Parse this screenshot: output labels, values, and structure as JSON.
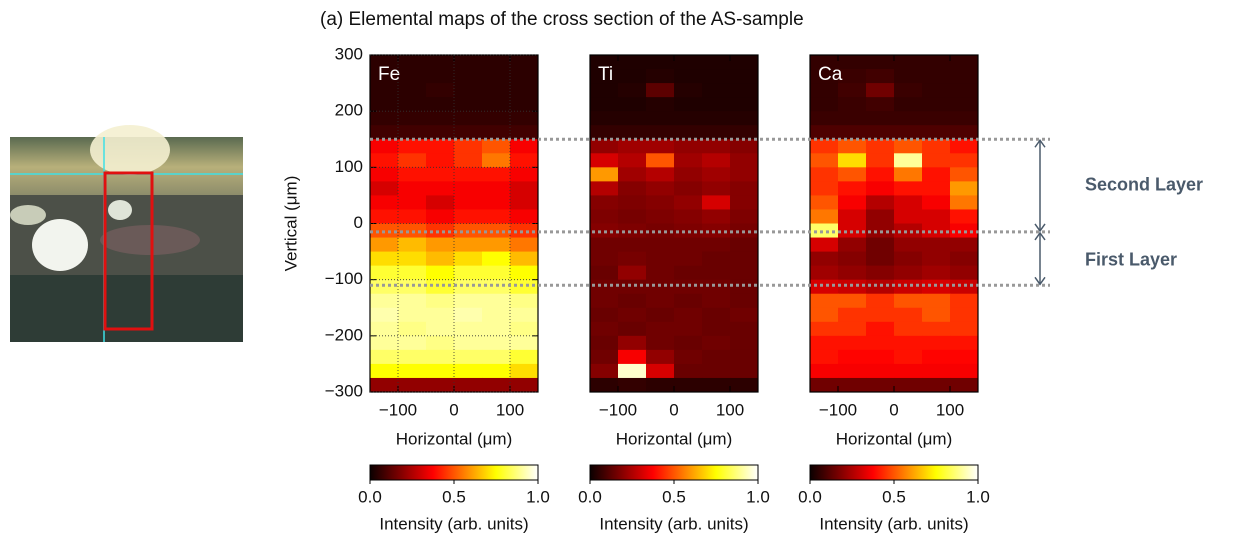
{
  "title": "(a) Elemental maps of the cross section of the AS-sample",
  "layers": {
    "boundaries": [
      150,
      -15,
      -110
    ],
    "labels": [
      "Second Layer",
      "First Layer"
    ]
  },
  "chart_data": [
    {
      "type": "heatmap",
      "label": "Fe",
      "colormap": "hot",
      "grid": true,
      "xlabel": "Horizontal (μm)",
      "ylabel": "Vertical (μm)",
      "xlim": [
        -150,
        150
      ],
      "ylim": [
        -300,
        300
      ],
      "xticks": [
        {
          "value": -100,
          "label": "−100"
        },
        0,
        100
      ],
      "yticks": [
        {
          "value": -300,
          "label": "−300"
        },
        {
          "value": -200,
          "label": "−200"
        },
        {
          "value": -100,
          "label": "−100"
        },
        0,
        100,
        200,
        300
      ],
      "colorbar": {
        "lim": [
          0,
          1
        ],
        "ticks": [
          {
            "value": 0,
            "label": "0.0"
          },
          0.5,
          {
            "value": 1,
            "label": "1.0"
          }
        ],
        "label": "Intensity (arb. units)"
      },
      "values": [
        [
          0.05,
          0.05,
          0.05,
          0.05,
          0.05,
          0.05
        ],
        [
          0.05,
          0.05,
          0.05,
          0.05,
          0.05,
          0.05
        ],
        [
          0.05,
          0.05,
          0.06,
          0.05,
          0.05,
          0.05
        ],
        [
          0.05,
          0.05,
          0.05,
          0.05,
          0.05,
          0.05
        ],
        [
          0.06,
          0.06,
          0.06,
          0.06,
          0.06,
          0.06
        ],
        [
          0.08,
          0.08,
          0.08,
          0.08,
          0.08,
          0.08
        ],
        [
          0.35,
          0.4,
          0.4,
          0.45,
          0.5,
          0.35
        ],
        [
          0.4,
          0.45,
          0.4,
          0.45,
          0.55,
          0.4
        ],
        [
          0.35,
          0.4,
          0.4,
          0.4,
          0.4,
          0.35
        ],
        [
          0.3,
          0.35,
          0.35,
          0.35,
          0.35,
          0.3
        ],
        [
          0.35,
          0.35,
          0.3,
          0.35,
          0.35,
          0.3
        ],
        [
          0.4,
          0.4,
          0.35,
          0.4,
          0.4,
          0.35
        ],
        [
          0.5,
          0.5,
          0.45,
          0.5,
          0.5,
          0.45
        ],
        [
          0.6,
          0.65,
          0.6,
          0.6,
          0.6,
          0.55
        ],
        [
          0.7,
          0.7,
          0.65,
          0.7,
          0.75,
          0.65
        ],
        [
          0.8,
          0.8,
          0.75,
          0.8,
          0.8,
          0.75
        ],
        [
          0.85,
          0.85,
          0.8,
          0.85,
          0.85,
          0.8
        ],
        [
          0.9,
          0.9,
          0.88,
          0.9,
          0.9,
          0.88
        ],
        [
          0.92,
          0.9,
          0.9,
          0.92,
          0.9,
          0.9
        ],
        [
          0.9,
          0.88,
          0.9,
          0.9,
          0.9,
          0.88
        ],
        [
          0.9,
          0.9,
          0.88,
          0.9,
          0.9,
          0.9
        ],
        [
          0.85,
          0.85,
          0.85,
          0.85,
          0.85,
          0.8
        ],
        [
          0.75,
          0.75,
          0.75,
          0.75,
          0.75,
          0.7
        ],
        [
          0.2,
          0.2,
          0.2,
          0.2,
          0.2,
          0.2
        ]
      ]
    },
    {
      "type": "heatmap",
      "label": "Ti",
      "colormap": "hot",
      "grid": false,
      "xlabel": "Horizontal (μm)",
      "xlim": [
        -150,
        150
      ],
      "ylim": [
        -300,
        300
      ],
      "xticks": [
        {
          "value": -100,
          "label": "−100"
        },
        0,
        100
      ],
      "colorbar": {
        "lim": [
          0,
          1
        ],
        "ticks": [
          {
            "value": 0,
            "label": "0.0"
          },
          0.5,
          {
            "value": 1,
            "label": "1.0"
          }
        ],
        "label": "Intensity (arb. units)"
      },
      "values": [
        [
          0.03,
          0.03,
          0.03,
          0.03,
          0.03,
          0.03
        ],
        [
          0.03,
          0.03,
          0.04,
          0.03,
          0.03,
          0.03
        ],
        [
          0.03,
          0.04,
          0.12,
          0.04,
          0.03,
          0.03
        ],
        [
          0.03,
          0.03,
          0.04,
          0.03,
          0.03,
          0.03
        ],
        [
          0.04,
          0.04,
          0.04,
          0.04,
          0.04,
          0.04
        ],
        [
          0.06,
          0.06,
          0.06,
          0.06,
          0.06,
          0.06
        ],
        [
          0.2,
          0.22,
          0.22,
          0.2,
          0.2,
          0.18
        ],
        [
          0.3,
          0.25,
          0.5,
          0.22,
          0.25,
          0.2
        ],
        [
          0.6,
          0.22,
          0.25,
          0.2,
          0.22,
          0.2
        ],
        [
          0.25,
          0.18,
          0.2,
          0.18,
          0.2,
          0.18
        ],
        [
          0.18,
          0.17,
          0.18,
          0.2,
          0.3,
          0.18
        ],
        [
          0.17,
          0.16,
          0.17,
          0.18,
          0.2,
          0.17
        ],
        [
          0.18,
          0.17,
          0.16,
          0.17,
          0.18,
          0.16
        ],
        [
          0.15,
          0.15,
          0.15,
          0.15,
          0.15,
          0.14
        ],
        [
          0.15,
          0.16,
          0.15,
          0.15,
          0.14,
          0.14
        ],
        [
          0.14,
          0.2,
          0.15,
          0.14,
          0.14,
          0.14
        ],
        [
          0.15,
          0.15,
          0.15,
          0.15,
          0.15,
          0.14
        ],
        [
          0.15,
          0.14,
          0.15,
          0.14,
          0.15,
          0.14
        ],
        [
          0.14,
          0.15,
          0.14,
          0.15,
          0.14,
          0.15
        ],
        [
          0.15,
          0.14,
          0.15,
          0.15,
          0.14,
          0.14
        ],
        [
          0.14,
          0.2,
          0.15,
          0.14,
          0.15,
          0.14
        ],
        [
          0.15,
          0.35,
          0.2,
          0.15,
          0.14,
          0.14
        ],
        [
          0.18,
          0.95,
          0.3,
          0.14,
          0.14,
          0.14
        ],
        [
          0.05,
          0.06,
          0.05,
          0.05,
          0.05,
          0.05
        ]
      ]
    },
    {
      "type": "heatmap",
      "label": "Ca",
      "colormap": "hot",
      "grid": false,
      "xlabel": "Horizontal (μm)",
      "xlim": [
        -150,
        150
      ],
      "ylim": [
        -300,
        300
      ],
      "xticks": [
        {
          "value": -100,
          "label": "−100"
        },
        0,
        100
      ],
      "colorbar": {
        "lim": [
          0,
          1
        ],
        "ticks": [
          {
            "value": 0,
            "label": "0.0"
          },
          0.5,
          {
            "value": 1,
            "label": "1.0"
          }
        ],
        "label": "Intensity (arb. units)"
      },
      "values": [
        [
          0.06,
          0.06,
          0.06,
          0.06,
          0.06,
          0.06
        ],
        [
          0.06,
          0.07,
          0.08,
          0.06,
          0.06,
          0.06
        ],
        [
          0.06,
          0.08,
          0.15,
          0.07,
          0.06,
          0.06
        ],
        [
          0.06,
          0.07,
          0.08,
          0.06,
          0.06,
          0.06
        ],
        [
          0.07,
          0.07,
          0.07,
          0.07,
          0.07,
          0.07
        ],
        [
          0.1,
          0.1,
          0.1,
          0.1,
          0.1,
          0.1
        ],
        [
          0.45,
          0.5,
          0.45,
          0.5,
          0.45,
          0.4
        ],
        [
          0.5,
          0.7,
          0.45,
          0.9,
          0.45,
          0.45
        ],
        [
          0.45,
          0.5,
          0.4,
          0.55,
          0.4,
          0.5
        ],
        [
          0.45,
          0.4,
          0.35,
          0.4,
          0.4,
          0.6
        ],
        [
          0.5,
          0.35,
          0.25,
          0.3,
          0.35,
          0.55
        ],
        [
          0.55,
          0.3,
          0.2,
          0.3,
          0.3,
          0.4
        ],
        [
          0.85,
          0.3,
          0.2,
          0.25,
          0.3,
          0.35
        ],
        [
          0.3,
          0.2,
          0.15,
          0.2,
          0.2,
          0.2
        ],
        [
          0.2,
          0.18,
          0.15,
          0.18,
          0.2,
          0.18
        ],
        [
          0.22,
          0.2,
          0.18,
          0.2,
          0.22,
          0.2
        ],
        [
          0.3,
          0.28,
          0.25,
          0.28,
          0.3,
          0.28
        ],
        [
          0.5,
          0.5,
          0.45,
          0.5,
          0.5,
          0.45
        ],
        [
          0.5,
          0.45,
          0.45,
          0.45,
          0.5,
          0.45
        ],
        [
          0.45,
          0.45,
          0.4,
          0.45,
          0.45,
          0.45
        ],
        [
          0.4,
          0.4,
          0.4,
          0.4,
          0.4,
          0.4
        ],
        [
          0.4,
          0.38,
          0.38,
          0.4,
          0.38,
          0.38
        ],
        [
          0.35,
          0.35,
          0.35,
          0.35,
          0.35,
          0.35
        ],
        [
          0.15,
          0.15,
          0.15,
          0.15,
          0.15,
          0.15
        ]
      ]
    }
  ]
}
